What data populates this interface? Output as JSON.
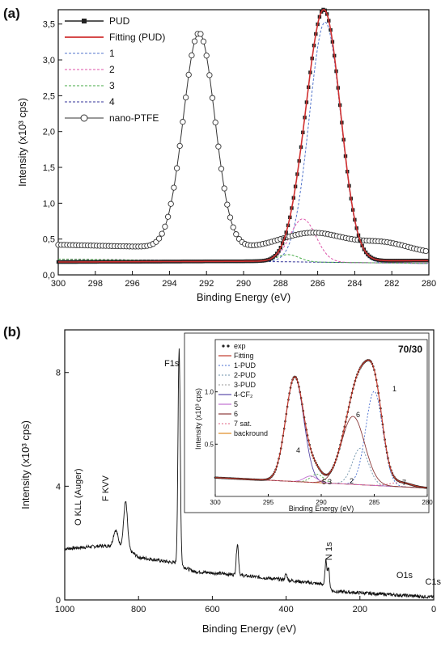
{
  "chart_data": [
    {
      "panel_label": "(a)",
      "type": "line",
      "xlabel": "Binding Energy (eV)",
      "ylabel": "Intensity (x10³ cps)",
      "xlim": [
        300,
        280
      ],
      "ylim": [
        0,
        3.7
      ],
      "x_ticks": [
        "300",
        "298",
        "296",
        "294",
        "292",
        "290",
        "288",
        "286",
        "284",
        "282",
        "280"
      ],
      "y_ticks": [
        "0,0",
        "0,5",
        "1,0",
        "1,5",
        "2,0",
        "2,5",
        "3,0",
        "3,5"
      ],
      "legend_position": "top-left",
      "legend": [
        "PUD",
        "Fitting (PUD)",
        "1",
        "2",
        "3",
        "4",
        "nano-PTFE"
      ],
      "colors": {
        "pud": "#222222",
        "fitting": "#d03030",
        "c1": "#5577cc",
        "c2": "#dd55aa",
        "c3": "#44aa44",
        "c4": "#333399",
        "ptfe": "#333333"
      },
      "series": [
        {
          "name": "PUD",
          "peaks": [
            {
              "center": 285.6,
              "height": 3.37,
              "sigma": 0.85
            },
            {
              "center": 286.8,
              "height": 0.55,
              "sigma": 0.7
            }
          ],
          "baseline_start": 0.18,
          "baseline_end": 0.2
        },
        {
          "name": "1",
          "center": 285.6,
          "height": 3.35,
          "sigma": 0.85
        },
        {
          "name": "2",
          "center": 286.8,
          "height": 0.6,
          "sigma": 0.7
        },
        {
          "name": "3",
          "center": 287.6,
          "height": 0.1,
          "sigma": 0.6
        },
        {
          "name": "4",
          "baseline_start": 0.22,
          "baseline_end": 0.16
        },
        {
          "name": "nano-PTFE",
          "peaks": [
            {
              "center": 292.4,
              "height": 3.0,
              "sigma": 0.85
            },
            {
              "center": 286.2,
              "height": 0.25,
              "sigma": 1.8
            },
            {
              "center": 282.3,
              "height": 0.12,
              "sigma": 1.3
            }
          ],
          "baseline_start": 0.42,
          "baseline_end": 0.3
        }
      ]
    },
    {
      "panel_label": "(b)",
      "type": "line",
      "xlabel": "Binding Energy (eV)",
      "ylabel": "Intensity (x10³ cps)",
      "xlim": [
        1000,
        0
      ],
      "ylim": [
        0,
        9.5
      ],
      "x_ticks": [
        "1000",
        "800",
        "600",
        "400",
        "200",
        "0"
      ],
      "y_ticks": [
        "0",
        "4",
        "8"
      ],
      "annotations": [
        "O KLL (Auger)",
        "F KVV",
        "F1s",
        "O1s",
        "N 1s",
        "C1s"
      ],
      "peaks": [
        {
          "center": 690,
          "height": 7.6,
          "width": 3
        },
        {
          "center": 835,
          "height": 1.6,
          "width": 5
        },
        {
          "center": 862,
          "height": 0.55,
          "width": 6
        },
        {
          "center": 532,
          "height": 1.1,
          "width": 3
        },
        {
          "center": 400,
          "height": 0.2,
          "width": 3
        },
        {
          "center": 292,
          "height": 0.9,
          "width": 2.5
        },
        {
          "center": 285,
          "height": 0.7,
          "width": 2.5
        }
      ],
      "background": [
        [
          1000,
          1.8
        ],
        [
          900,
          1.9
        ],
        [
          840,
          1.9
        ],
        [
          800,
          1.5
        ],
        [
          700,
          1.3
        ],
        [
          650,
          1.0
        ],
        [
          550,
          0.9
        ],
        [
          400,
          0.7
        ],
        [
          300,
          0.55
        ],
        [
          270,
          0.3
        ],
        [
          0,
          0.1
        ]
      ]
    },
    {
      "panel_label": "70/30",
      "type": "line",
      "xlabel": "Binding Energy (eV)",
      "ylabel": "Intensity (x10³ cps)",
      "xlim": [
        300,
        280
      ],
      "ylim": [
        0,
        1.5
      ],
      "x_ticks": [
        "300",
        "295",
        "290",
        "285",
        "280"
      ],
      "y_ticks": [
        "0.5",
        "1.0"
      ],
      "legend": [
        "exp",
        "Fitting",
        "1-PUD",
        "2-PUD",
        "3-PUD",
        "4-CF₂",
        "5",
        "6",
        "7 sat.",
        "backround"
      ],
      "peak_labels": [
        "4",
        "5",
        "3",
        "2",
        "6",
        "1",
        "7"
      ],
      "peaks": [
        {
          "name": "4-CF₂",
          "center": 292.5,
          "height": 1.0,
          "sigma": 0.85
        },
        {
          "name": "1-PUD",
          "center": 285.0,
          "height": 0.9,
          "sigma": 0.8
        },
        {
          "name": "2-PUD",
          "center": 286.3,
          "height": 0.35,
          "sigma": 0.75
        },
        {
          "name": "3-PUD",
          "center": 290.4,
          "height": 0.08,
          "sigma": 0.6
        },
        {
          "name": "5",
          "center": 291.0,
          "height": 0.06,
          "sigma": 0.6
        },
        {
          "name": "6",
          "center": 287.0,
          "height": 0.65,
          "sigma": 1.1
        },
        {
          "name": "7 sat.",
          "center": 282.5,
          "height": 0.04,
          "sigma": 1.0
        }
      ],
      "background_start": 0.18,
      "background_end": 0.08
    }
  ]
}
